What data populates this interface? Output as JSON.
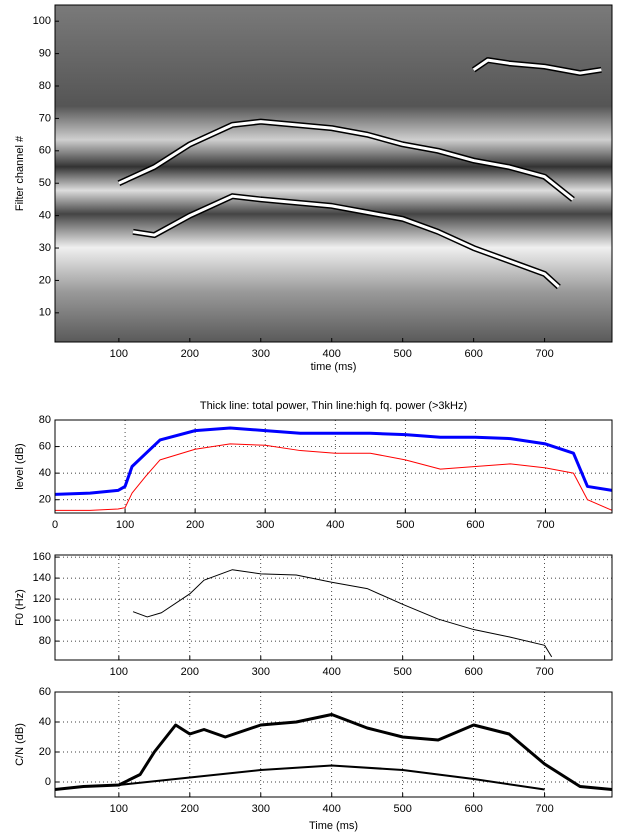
{
  "chart_data": [
    {
      "type": "line",
      "image": true,
      "grid": false,
      "xlabel": "time (ms)",
      "ylabel": "Filter channel #",
      "xlim": [
        10,
        795
      ],
      "ylim": [
        1,
        105
      ],
      "xticks": [
        100,
        200,
        300,
        400,
        500,
        600,
        700
      ],
      "yticks": [
        10,
        20,
        30,
        40,
        50,
        60,
        70,
        80,
        90,
        100
      ],
      "series": [
        {
          "color": "#ffffff",
          "width": 3,
          "x": [
            120,
            150,
            200,
            260,
            300,
            350,
            400,
            450,
            500,
            550,
            600,
            650,
            700,
            720
          ],
          "values": [
            35,
            34,
            40,
            46,
            45,
            44,
            43,
            41,
            39,
            35,
            30,
            26,
            22,
            18
          ]
        },
        {
          "color": "#ffffff",
          "width": 3,
          "x": [
            100,
            150,
            200,
            260,
            300,
            350,
            400,
            450,
            500,
            550,
            600,
            650,
            700,
            740
          ],
          "values": [
            50,
            55,
            62,
            68,
            69,
            68,
            67,
            65,
            62,
            60,
            57,
            55,
            52,
            45
          ]
        },
        {
          "color": "#ffffff",
          "width": 3,
          "x": [
            600,
            620,
            650,
            700,
            750,
            780
          ],
          "values": [
            85,
            88,
            87,
            86,
            84,
            85
          ]
        }
      ]
    },
    {
      "type": "line",
      "grid": true,
      "title": "Thick line: total power, Thin line:high fq. power (>3kHz)",
      "ylabel": "level (dB)",
      "xlim": [
        0,
        795
      ],
      "ylim": [
        10,
        80
      ],
      "xticks": [
        0,
        100,
        200,
        300,
        400,
        500,
        600,
        700
      ],
      "yticks": [
        20,
        40,
        60,
        80
      ],
      "series": [
        {
          "color": "#0000ff",
          "width": 3,
          "x": [
            0,
            50,
            90,
            100,
            110,
            130,
            150,
            200,
            250,
            300,
            350,
            400,
            450,
            500,
            550,
            600,
            650,
            700,
            740,
            760,
            795
          ],
          "values": [
            24,
            25,
            27,
            30,
            45,
            55,
            65,
            72,
            74,
            72,
            70,
            70,
            70,
            69,
            67,
            67,
            66,
            62,
            55,
            30,
            27
          ]
        },
        {
          "color": "#ff0000",
          "width": 1,
          "x": [
            0,
            50,
            90,
            100,
            110,
            130,
            150,
            200,
            250,
            300,
            350,
            400,
            450,
            500,
            550,
            600,
            650,
            700,
            740,
            760,
            795
          ],
          "values": [
            12,
            12,
            13,
            14,
            25,
            38,
            50,
            58,
            62,
            61,
            57,
            55,
            55,
            50,
            43,
            45,
            47,
            44,
            40,
            20,
            12
          ]
        }
      ]
    },
    {
      "type": "line",
      "grid": true,
      "ylabel": "F0 (Hz)",
      "xlim": [
        10,
        795
      ],
      "ylim": [
        62,
        162
      ],
      "xticks": [
        100,
        200,
        300,
        400,
        500,
        600,
        700
      ],
      "yticks": [
        80,
        100,
        120,
        140,
        160
      ],
      "series": [
        {
          "color": "#000000",
          "width": 1,
          "x": [
            120,
            140,
            160,
            200,
            220,
            260,
            300,
            350,
            400,
            450,
            500,
            550,
            600,
            650,
            700,
            710
          ],
          "values": [
            108,
            103,
            107,
            125,
            138,
            148,
            144,
            143,
            136,
            130,
            115,
            101,
            91,
            84,
            76,
            65
          ]
        }
      ]
    },
    {
      "type": "line",
      "grid": true,
      "xlabel": "Time (ms)",
      "ylabel": "C/N (dB)",
      "xlim": [
        10,
        795
      ],
      "ylim": [
        -10,
        60
      ],
      "xticks": [
        100,
        200,
        300,
        400,
        500,
        600,
        700
      ],
      "yticks": [
        0,
        20,
        40,
        60
      ],
      "series": [
        {
          "color": "#000000",
          "width": 3,
          "x": [
            10,
            50,
            100,
            130,
            150,
            180,
            200,
            220,
            250,
            300,
            350,
            400,
            450,
            500,
            550,
            600,
            650,
            700,
            750,
            795
          ],
          "values": [
            -5,
            -3,
            -2,
            5,
            20,
            38,
            32,
            35,
            30,
            38,
            40,
            45,
            36,
            30,
            28,
            38,
            32,
            12,
            -3,
            -5
          ]
        },
        {
          "color": "#000000",
          "width": 2,
          "x": [
            100,
            200,
            300,
            400,
            500,
            600,
            700
          ],
          "values": [
            -2,
            3,
            8,
            11,
            8,
            2,
            -5
          ]
        }
      ]
    }
  ]
}
